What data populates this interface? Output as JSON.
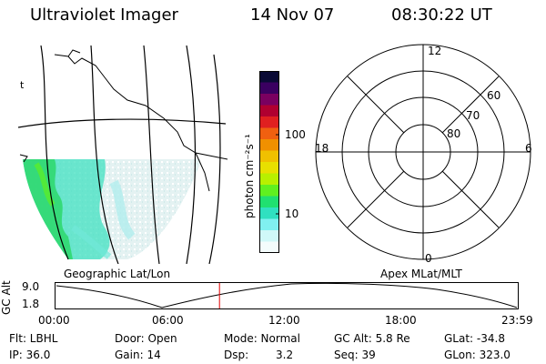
{
  "header": {
    "instrument": "Ultraviolet Imager",
    "date": "14 Nov 07",
    "time": "08:30:22 UT"
  },
  "colorbar": {
    "unit_label": "photon cm⁻²s⁻¹",
    "ticks": [
      "100",
      "10"
    ],
    "colors": [
      "#0a0a35",
      "#3a0060",
      "#7a0060",
      "#b00030",
      "#e02020",
      "#f06010",
      "#f09000",
      "#f0c000",
      "#e8e000",
      "#b8f000",
      "#60f020",
      "#20e070",
      "#30e0c0",
      "#80f0f0",
      "#d0f8f8",
      "#f4fcfc"
    ]
  },
  "left_panel": {
    "caption": "Geographic Lat/Lon",
    "marker": "t"
  },
  "polar_panel": {
    "caption": "Apex MLat/MLT",
    "mlt_labels": {
      "top": "12",
      "left": "18",
      "right": "6",
      "bottom": "0"
    },
    "lat_labels": [
      "60",
      "70",
      "80"
    ]
  },
  "timeline": {
    "ylabel": "GC Alt",
    "yticks": [
      "9.0",
      "1.8"
    ],
    "xticks": [
      "00:00",
      "06:00",
      "12:00",
      "18:00",
      "23:59"
    ],
    "current_time_hours": 8.5
  },
  "info": {
    "flt": "Flt: LBHL",
    "ip": "IP: 36.0",
    "door": "Door: Open",
    "gain": "Gain: 14",
    "mode": "Mode: Normal",
    "dsp_label": "Dsp:",
    "dsp_value": "3.2",
    "gc_alt": "GC Alt: 5.8 Re",
    "seq": "Seq: 39",
    "glat": "GLat: -34.8",
    "glon": "GLon: 323.0"
  }
}
